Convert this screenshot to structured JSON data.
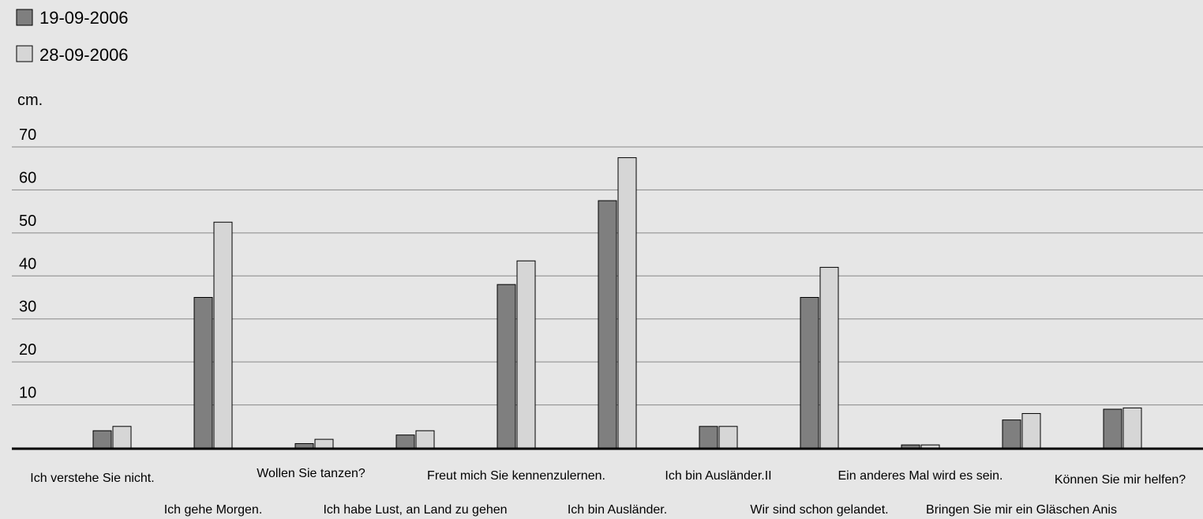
{
  "colors": {
    "background": "#e6e6e6",
    "series1": "#7f7f7f",
    "series2": "#d6d6d6",
    "bar_stroke": "#000000",
    "grid": "#888888"
  },
  "chart_data": {
    "type": "bar",
    "title": "",
    "xlabel": "",
    "ylabel": "cm.",
    "ylim": [
      0,
      70
    ],
    "yticks": [
      10,
      20,
      30,
      40,
      50,
      60,
      70
    ],
    "grid": true,
    "legend_position": "top-left",
    "categories": [
      "Ich verstehe Sie nicht.",
      "Ich gehe Morgen.",
      "Wollen Sie tanzen?",
      "Ich habe Lust, an Land zu gehen",
      "Freut mich Sie kennenzulernen.",
      "Ich bin Ausländer.",
      "Ich bin Ausländer.II",
      "Wir sind schon gelandet.",
      "Ein anderes Mal wird es sein.",
      "Bringen Sie mir ein Gläschen Anis",
      "Können Sie mir helfen?"
    ],
    "series": [
      {
        "name": "19-09-2006",
        "values": [
          4,
          35,
          1,
          3,
          38,
          57.5,
          5,
          35,
          0.7,
          6.5,
          9
        ]
      },
      {
        "name": "28-09-2006",
        "values": [
          5,
          52.5,
          2,
          4,
          43.5,
          67.5,
          5,
          42,
          0.7,
          8,
          9.3
        ]
      }
    ]
  }
}
